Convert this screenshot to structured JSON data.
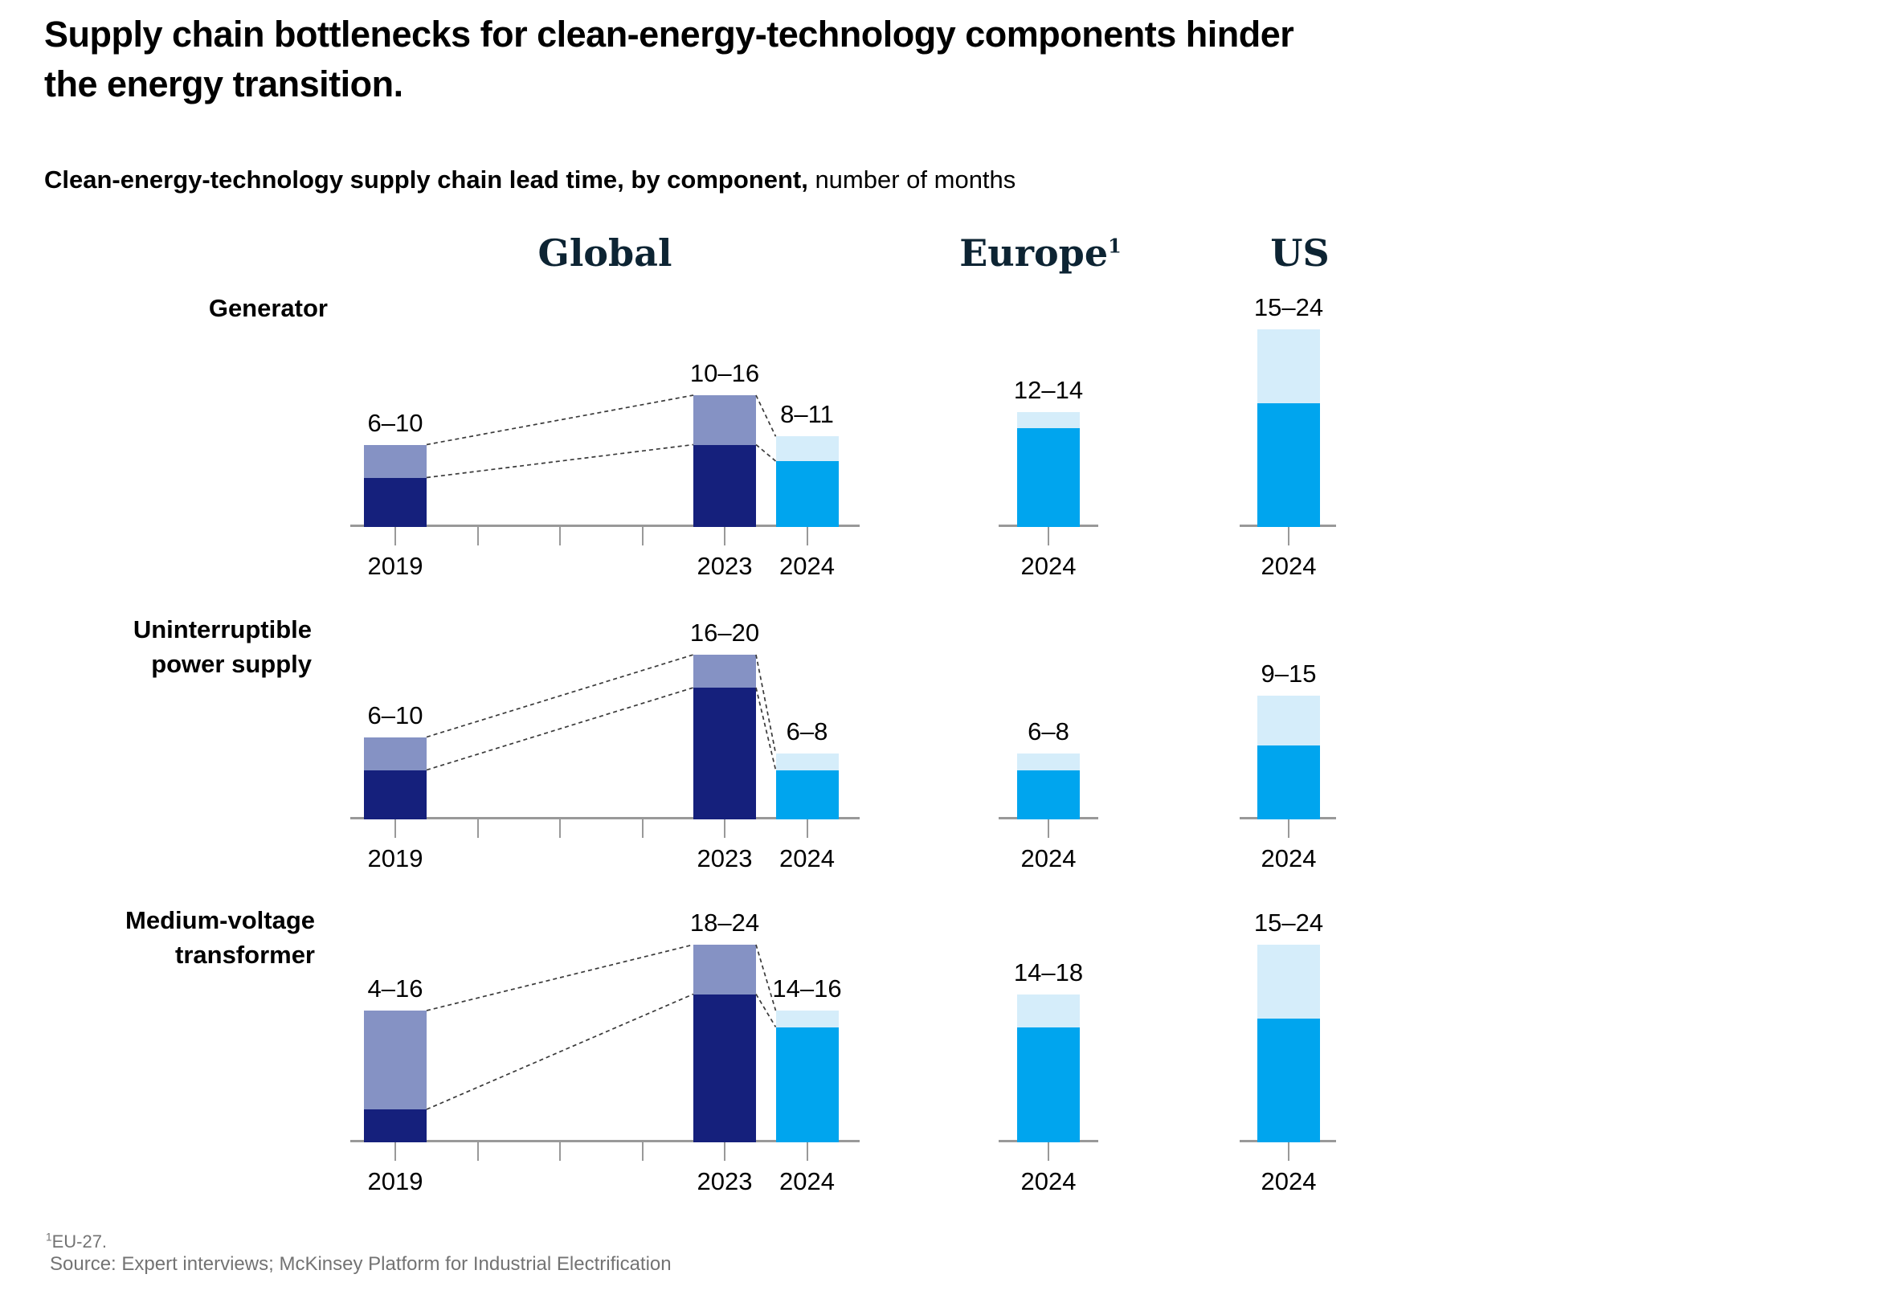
{
  "header": {
    "title_line1": "Supply chain bottlenecks for clean-energy-technology components hinder",
    "title_line2": "the energy transition.",
    "subtitle_bold": "Clean-energy-technology supply chain lead time, by component,",
    "subtitle_regular": " number of months"
  },
  "chart_data": {
    "type": "bar",
    "title": "Clean-energy-technology supply chain lead time, by component",
    "unit": "number of months",
    "ylim": [
      0,
      24
    ],
    "grid": false,
    "legend": "none",
    "colors": {
      "historical": {
        "low": "#15207c",
        "high": "#8592c4"
      },
      "current": {
        "low": "#00a5ee",
        "high": "#d5edfa"
      },
      "header_navy": "#0d2433",
      "axis_gray": "#999999",
      "connector_gray": "#3a3a3a",
      "footnote_gray": "#737373"
    },
    "columns": [
      {
        "id": "global",
        "label": "Global",
        "tick_years": [
          "2019",
          "2020",
          "2021",
          "2022",
          "2023",
          "2024"
        ],
        "labeled_years": [
          "2019",
          "2023",
          "2024"
        ]
      },
      {
        "id": "europe",
        "label": "Europe",
        "sup": "1",
        "labeled_years": [
          "2024"
        ]
      },
      {
        "id": "us",
        "label": "US",
        "labeled_years": [
          "2024"
        ]
      }
    ],
    "rows": [
      {
        "component": "Generator",
        "label_lines": [
          "Generator"
        ],
        "global": [
          {
            "year": "2019",
            "min": 6,
            "max": 10,
            "label": "6–10",
            "palette": "historical"
          },
          {
            "year": "2023",
            "min": 10,
            "max": 16,
            "label": "10–16",
            "palette": "historical"
          },
          {
            "year": "2024",
            "min": 8,
            "max": 11,
            "label": "8–11",
            "palette": "current"
          }
        ],
        "europe": [
          {
            "year": "2024",
            "min": 12,
            "max": 14,
            "label": "12–14",
            "palette": "current"
          }
        ],
        "us": [
          {
            "year": "2024",
            "min": 15,
            "max": 24,
            "label": "15–24",
            "palette": "current"
          }
        ]
      },
      {
        "component": "Uninterruptible power supply",
        "label_lines": [
          "Uninterruptible",
          "power supply"
        ],
        "global": [
          {
            "year": "2019",
            "min": 6,
            "max": 10,
            "label": "6–10",
            "palette": "historical"
          },
          {
            "year": "2023",
            "min": 16,
            "max": 20,
            "label": "16–20",
            "palette": "historical"
          },
          {
            "year": "2024",
            "min": 6,
            "max": 8,
            "label": "6–8",
            "palette": "current"
          }
        ],
        "europe": [
          {
            "year": "2024",
            "min": 6,
            "max": 8,
            "label": "6–8",
            "palette": "current"
          }
        ],
        "us": [
          {
            "year": "2024",
            "min": 9,
            "max": 15,
            "label": "9–15",
            "palette": "current"
          }
        ]
      },
      {
        "component": "Medium-voltage transformer",
        "label_lines": [
          "Medium-voltage",
          "transformer"
        ],
        "global": [
          {
            "year": "2019",
            "min": 4,
            "max": 16,
            "label": "4–16",
            "palette": "historical"
          },
          {
            "year": "2023",
            "min": 18,
            "max": 24,
            "label": "18–24",
            "palette": "historical"
          },
          {
            "year": "2024",
            "min": 14,
            "max": 16,
            "label": "14–16",
            "palette": "current"
          }
        ],
        "europe": [
          {
            "year": "2024",
            "min": 14,
            "max": 18,
            "label": "14–18",
            "palette": "current"
          }
        ],
        "us": [
          {
            "year": "2024",
            "min": 15,
            "max": 24,
            "label": "15–24",
            "palette": "current"
          }
        ]
      }
    ]
  },
  "footnotes": {
    "note_sup": "1",
    "note_text": "EU-27.",
    "source": "Source: Expert interviews; McKinsey Platform for Industrial Electrification"
  }
}
